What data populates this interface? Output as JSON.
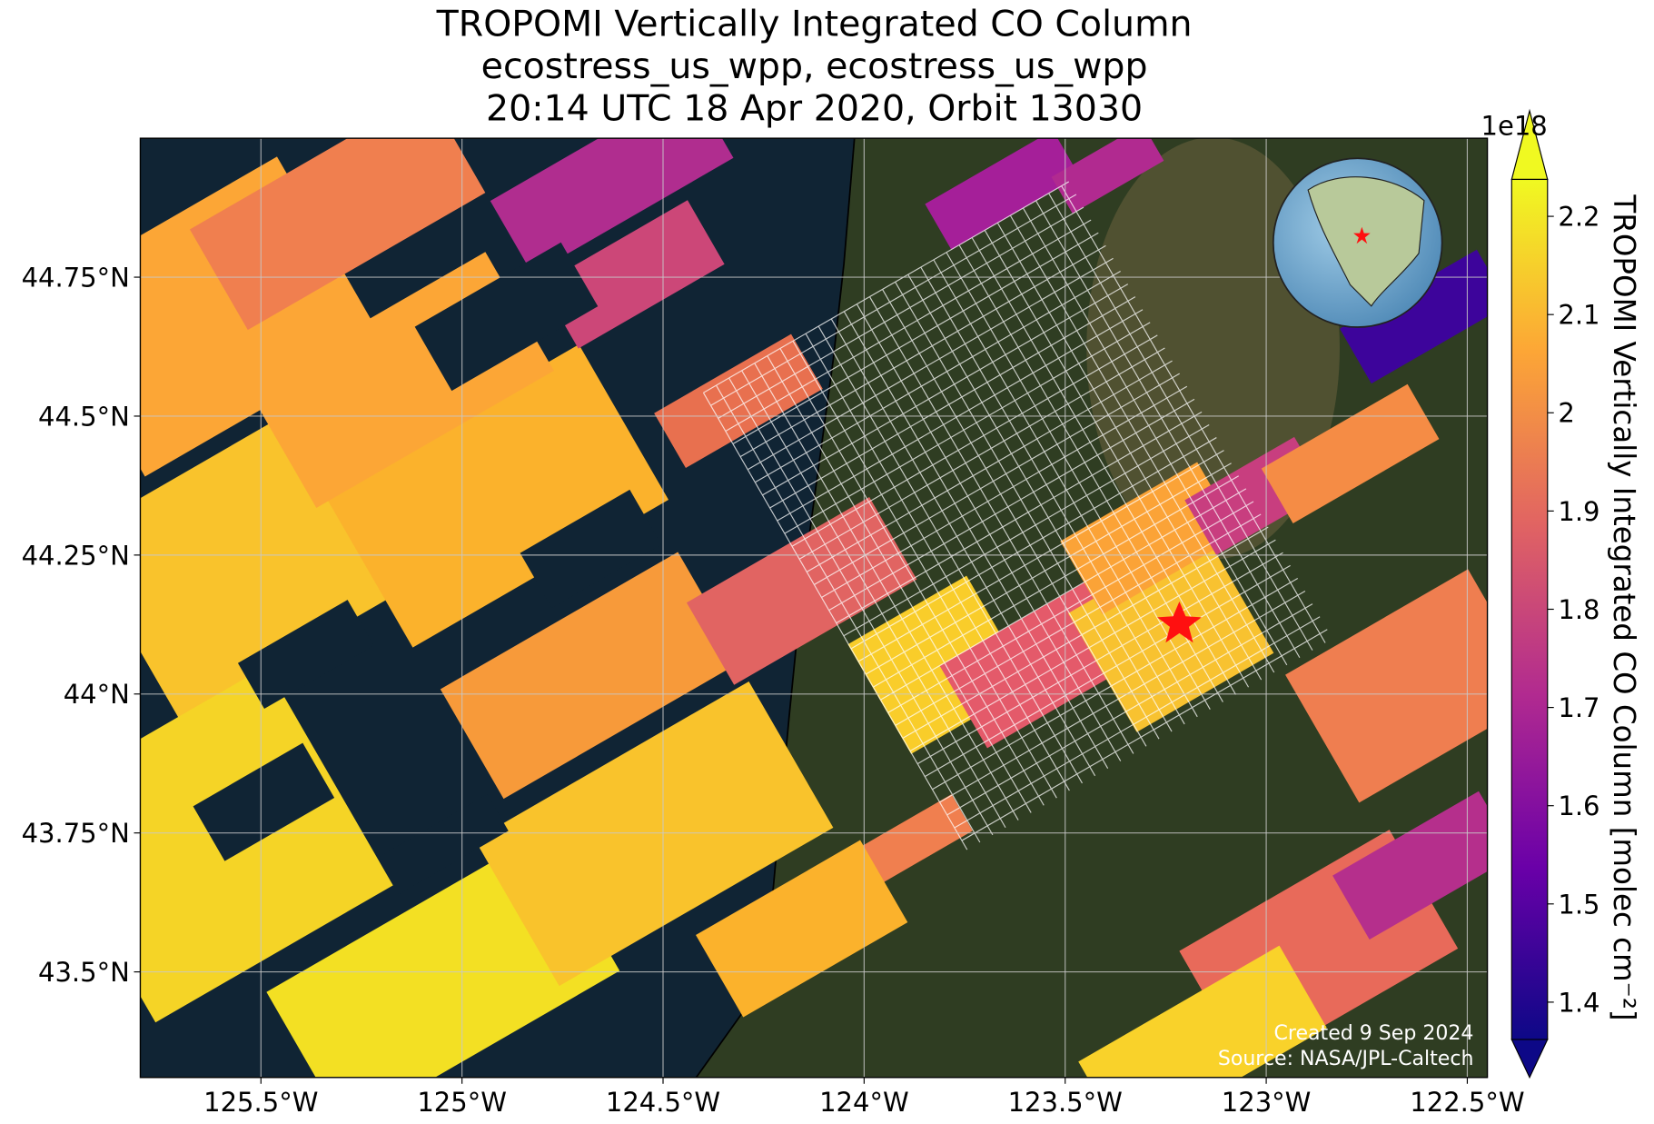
{
  "chart_data": {
    "type": "map",
    "title": [
      "TROPOMI Vertically Integrated CO Column",
      "ecostress_us_wpp, ecostress_us_wpp",
      "20:14 UTC 18 Apr 2020, Orbit 13030"
    ],
    "xlim": [
      -125.8,
      -122.45
    ],
    "ylim": [
      43.31,
      45.0
    ],
    "xticks": [
      {
        "value": -125.5,
        "label": "125.5°W"
      },
      {
        "value": -125,
        "label": "125°W"
      },
      {
        "value": -124.5,
        "label": "124.5°W"
      },
      {
        "value": -124,
        "label": "124°W"
      },
      {
        "value": -123.5,
        "label": "123.5°W"
      },
      {
        "value": -123,
        "label": "123°W"
      },
      {
        "value": -122.5,
        "label": "122.5°W"
      }
    ],
    "yticks": [
      {
        "value": 44.75,
        "label": "44.75°N"
      },
      {
        "value": 44.5,
        "label": "44.5°N"
      },
      {
        "value": 44.25,
        "label": "44.25°N"
      },
      {
        "value": 44,
        "label": "44°N"
      },
      {
        "value": 43.75,
        "label": "43.75°N"
      },
      {
        "value": 43.5,
        "label": "43.5°N"
      }
    ],
    "grid": true,
    "colorbar": {
      "label": "TROPOMI Vertically Integrated CO Column [molec cm⁻²]",
      "multiplier": "1e18",
      "clim": [
        1.362,
        2.2376
      ],
      "ticks": [
        1.4,
        1.5,
        1.6,
        1.7,
        1.8,
        1.9,
        2.0,
        2.1,
        2.2
      ],
      "colormap": [
        "#0d0887",
        "#6a00a8",
        "#b12a90",
        "#e16462",
        "#fca636",
        "#f0f921"
      ]
    },
    "credits": [
      "Created 9 Sep 2024",
      "Source: NASA/JPL-Caltech"
    ]
  }
}
